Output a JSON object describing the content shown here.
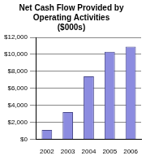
{
  "chart_data": {
    "type": "bar",
    "title": [
      "Net Cash Flow Provided by",
      "Operating Activities",
      "($000s)"
    ],
    "categories": [
      "2002",
      "2003",
      "2004",
      "2005",
      "2006"
    ],
    "values": [
      1100,
      3200,
      7400,
      10300,
      10900
    ],
    "color": "#8c8ce0",
    "ylim": [
      0,
      12000
    ],
    "yticks": [
      {
        "value": 0,
        "label": "$0"
      },
      {
        "value": 2000,
        "label": "$2,000"
      },
      {
        "value": 4000,
        "label": "$4,000"
      },
      {
        "value": 6000,
        "label": "$6,000"
      },
      {
        "value": 8000,
        "label": "$8,000"
      },
      {
        "value": 10000,
        "label": "$10,000"
      },
      {
        "value": 12000,
        "label": "$12,000"
      }
    ],
    "grid": true
  }
}
